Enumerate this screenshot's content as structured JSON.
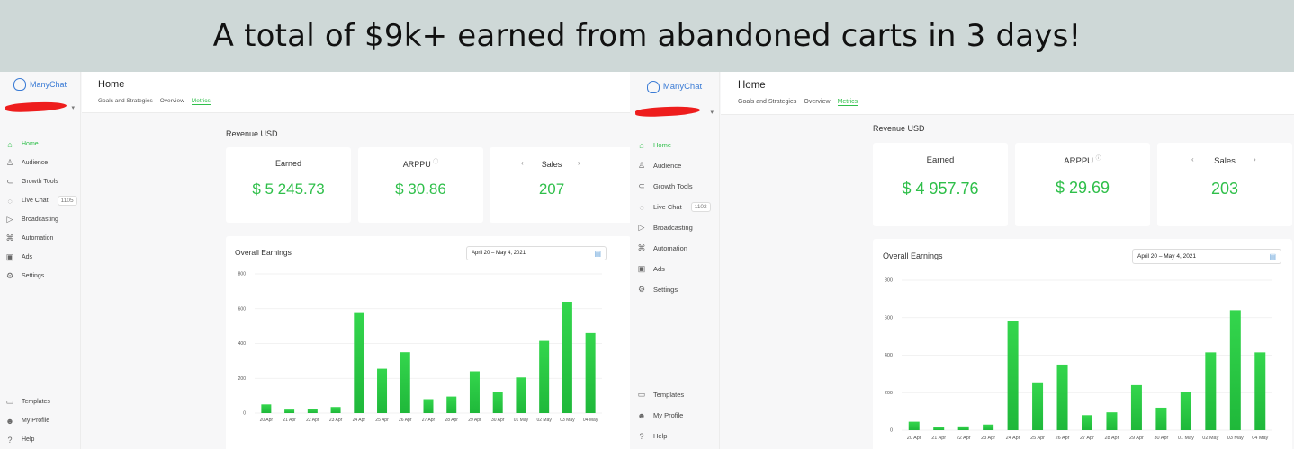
{
  "banner": {
    "text": "A total of $9k+ earned from abandoned carts in 3 days!"
  },
  "colors": {
    "accent": "#2fbf4a",
    "banner_bg": "#ced8d7",
    "brand": "#3a7bd5",
    "redaction": "#ee1d1d"
  },
  "panels": [
    {
      "brand": "ManyChat",
      "nav": [
        {
          "label": "Home",
          "icon": "home-icon",
          "active": true
        },
        {
          "label": "Audience",
          "icon": "user-icon"
        },
        {
          "label": "Growth Tools",
          "icon": "magnet-icon"
        },
        {
          "label": "Live Chat",
          "icon": "chat-bubble-icon",
          "badge": "1105"
        },
        {
          "label": "Broadcasting",
          "icon": "send-icon"
        },
        {
          "label": "Automation",
          "icon": "automation-icon"
        },
        {
          "label": "Ads",
          "icon": "ads-icon"
        },
        {
          "label": "Settings",
          "icon": "gear-icon"
        }
      ],
      "bottom_nav": [
        {
          "label": "Templates",
          "icon": "templates-icon"
        },
        {
          "label": "My Profile",
          "icon": "avatar-icon"
        },
        {
          "label": "Help",
          "icon": "help-icon"
        }
      ],
      "page_title": "Home",
      "tabs": [
        {
          "label": "Goals and Strategies"
        },
        {
          "label": "Overview"
        },
        {
          "label": "Metrics",
          "active": true
        }
      ],
      "revenue_title": "Revenue USD",
      "cards": {
        "earned": {
          "label": "Earned",
          "value": "$ 5 245.73"
        },
        "arppu": {
          "label": "ARPPU",
          "value": "$ 30.86"
        },
        "sales": {
          "label": "Sales",
          "value": "207"
        }
      },
      "earnings_title": "Overall Earnings",
      "date_range": "April 20 – May 4, 2021"
    },
    {
      "brand": "ManyChat",
      "nav": [
        {
          "label": "Home",
          "icon": "home-icon",
          "active": true
        },
        {
          "label": "Audience",
          "icon": "user-icon"
        },
        {
          "label": "Growth Tools",
          "icon": "magnet-icon"
        },
        {
          "label": "Live Chat",
          "icon": "chat-bubble-icon",
          "badge": "1102"
        },
        {
          "label": "Broadcasting",
          "icon": "send-icon"
        },
        {
          "label": "Automation",
          "icon": "automation-icon"
        },
        {
          "label": "Ads",
          "icon": "ads-icon"
        },
        {
          "label": "Settings",
          "icon": "gear-icon"
        }
      ],
      "bottom_nav": [
        {
          "label": "Templates",
          "icon": "templates-icon"
        },
        {
          "label": "My Profile",
          "icon": "avatar-icon"
        },
        {
          "label": "Help",
          "icon": "help-icon"
        }
      ],
      "page_title": "Home",
      "tabs": [
        {
          "label": "Goals and Strategies"
        },
        {
          "label": "Overview"
        },
        {
          "label": "Metrics",
          "active": true
        }
      ],
      "revenue_title": "Revenue USD",
      "cards": {
        "earned": {
          "label": "Earned",
          "value": "$ 4 957.76"
        },
        "arppu": {
          "label": "ARPPU",
          "value": "$ 29.69"
        },
        "sales": {
          "label": "Sales",
          "value": "203"
        }
      },
      "earnings_title": "Overall Earnings",
      "date_range": "April 20 – May 4, 2021"
    }
  ],
  "chart_data": [
    {
      "type": "bar",
      "title": "Overall Earnings",
      "categories": [
        "20 Apr",
        "21 Apr",
        "22 Apr",
        "23 Apr",
        "24 Apr",
        "25 Apr",
        "26 Apr",
        "27 Apr",
        "28 Apr",
        "29 Apr",
        "30 Apr",
        "01 May",
        "02 May",
        "03 May",
        "04 May"
      ],
      "values": [
        50,
        20,
        25,
        35,
        580,
        255,
        350,
        80,
        95,
        240,
        120,
        205,
        415,
        640,
        460
      ],
      "yticks": [
        0,
        200,
        400,
        600,
        800
      ],
      "ylim": [
        0,
        800
      ],
      "color": "#2fbf4a",
      "grid": true
    },
    {
      "type": "bar",
      "title": "Overall Earnings",
      "categories": [
        "20 Apr",
        "21 Apr",
        "22 Apr",
        "23 Apr",
        "24 Apr",
        "25 Apr",
        "26 Apr",
        "27 Apr",
        "28 Apr",
        "29 Apr",
        "30 Apr",
        "01 May",
        "02 May",
        "03 May",
        "04 May"
      ],
      "values": [
        45,
        15,
        20,
        30,
        580,
        255,
        350,
        80,
        95,
        240,
        120,
        205,
        415,
        640,
        415
      ],
      "yticks": [
        0,
        200,
        400,
        600,
        800
      ],
      "ylim": [
        0,
        800
      ],
      "color": "#2fbf4a",
      "grid": true
    }
  ]
}
